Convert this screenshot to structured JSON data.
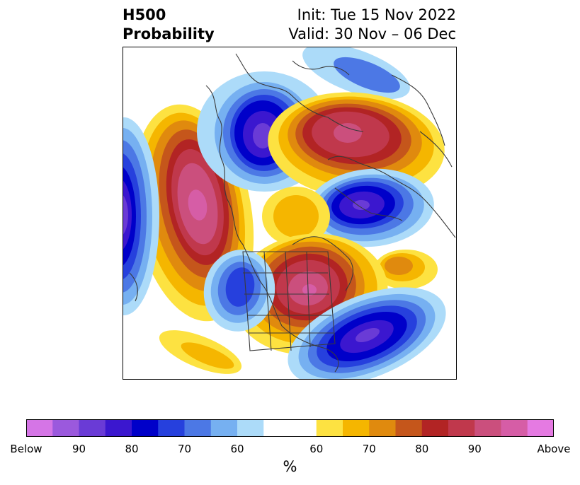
{
  "header": {
    "title_line1": "H500",
    "title_line2": "Probability",
    "init_label": "Init: Tue 15 Nov 2022",
    "valid_label": "Valid: 30 Nov – 06 Dec"
  },
  "colorbar": {
    "unit_label": "%",
    "below_colors": [
      "#d575e6",
      "#9b59dd",
      "#6a3bd6",
      "#3b17cf",
      "#0000c9",
      "#2640dd",
      "#4c78e5",
      "#76b0f1",
      "#acdbf9"
    ],
    "neutral_color": "#ffffff",
    "above_colors": [
      "#fde241",
      "#f5b600",
      "#e08a0e",
      "#c5561b",
      "#b22424",
      "#c0384c",
      "#cb4f7d",
      "#d65da6",
      "#e57ae2"
    ],
    "ticks": [
      {
        "label": "Below"
      },
      {
        "label": "90"
      },
      {
        "label": "80"
      },
      {
        "label": "70"
      },
      {
        "label": "60"
      },
      {
        "label": "60"
      },
      {
        "label": "70"
      },
      {
        "label": "80"
      },
      {
        "label": "90"
      },
      {
        "label": "Above"
      }
    ]
  }
}
